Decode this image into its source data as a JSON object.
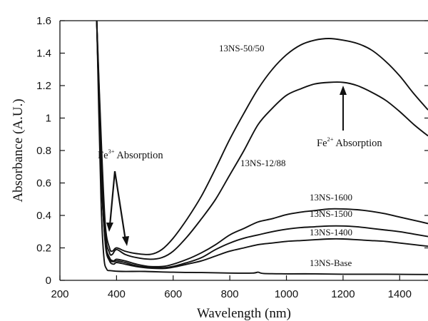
{
  "chart_data": {
    "type": "line",
    "title": "",
    "xlabel": "Wavelength (nm)",
    "ylabel": "Absorbance (A.U.)",
    "xlim": [
      200,
      1500
    ],
    "ylim": [
      0,
      1.6
    ],
    "x_ticks": [
      "200",
      "400",
      "600",
      "800",
      "1000",
      "1200",
      "1400"
    ],
    "y_ticks": [
      "0",
      "0.2",
      "0.4",
      "0.6",
      "0.8",
      "1",
      "1.2",
      "1.4",
      "1.6"
    ],
    "grid": false,
    "series": [
      {
        "name": "13NS-50/50",
        "points": [
          [
            330,
            1.6
          ],
          [
            345,
            0.9
          ],
          [
            360,
            0.35
          ],
          [
            375,
            0.2
          ],
          [
            385,
            0.18
          ],
          [
            400,
            0.2
          ],
          [
            430,
            0.18
          ],
          [
            470,
            0.165
          ],
          [
            520,
            0.16
          ],
          [
            560,
            0.19
          ],
          [
            600,
            0.26
          ],
          [
            650,
            0.38
          ],
          [
            700,
            0.52
          ],
          [
            750,
            0.69
          ],
          [
            800,
            0.87
          ],
          [
            850,
            1.03
          ],
          [
            900,
            1.18
          ],
          [
            950,
            1.3
          ],
          [
            1000,
            1.39
          ],
          [
            1050,
            1.45
          ],
          [
            1100,
            1.48
          ],
          [
            1150,
            1.49
          ],
          [
            1200,
            1.48
          ],
          [
            1250,
            1.46
          ],
          [
            1300,
            1.42
          ],
          [
            1350,
            1.35
          ],
          [
            1400,
            1.26
          ],
          [
            1450,
            1.15
          ],
          [
            1500,
            1.05
          ]
        ]
      },
      {
        "name": "13NS-12/88",
        "points": [
          [
            330,
            1.6
          ],
          [
            345,
            0.85
          ],
          [
            360,
            0.3
          ],
          [
            375,
            0.17
          ],
          [
            385,
            0.16
          ],
          [
            400,
            0.19
          ],
          [
            430,
            0.16
          ],
          [
            470,
            0.14
          ],
          [
            520,
            0.13
          ],
          [
            560,
            0.14
          ],
          [
            600,
            0.18
          ],
          [
            650,
            0.27
          ],
          [
            700,
            0.38
          ],
          [
            750,
            0.5
          ],
          [
            800,
            0.65
          ],
          [
            850,
            0.8
          ],
          [
            900,
            0.96
          ],
          [
            950,
            1.06
          ],
          [
            1000,
            1.14
          ],
          [
            1050,
            1.18
          ],
          [
            1100,
            1.21
          ],
          [
            1150,
            1.22
          ],
          [
            1200,
            1.22
          ],
          [
            1250,
            1.2
          ],
          [
            1300,
            1.16
          ],
          [
            1350,
            1.11
          ],
          [
            1400,
            1.04
          ],
          [
            1450,
            0.96
          ],
          [
            1500,
            0.89
          ]
        ]
      },
      {
        "name": "13NS-1600",
        "points": [
          [
            330,
            1.6
          ],
          [
            345,
            0.7
          ],
          [
            360,
            0.25
          ],
          [
            375,
            0.14
          ],
          [
            390,
            0.12
          ],
          [
            400,
            0.13
          ],
          [
            430,
            0.12
          ],
          [
            470,
            0.1
          ],
          [
            520,
            0.085
          ],
          [
            580,
            0.09
          ],
          [
            650,
            0.13
          ],
          [
            700,
            0.17
          ],
          [
            750,
            0.22
          ],
          [
            800,
            0.28
          ],
          [
            850,
            0.32
          ],
          [
            900,
            0.36
          ],
          [
            950,
            0.38
          ],
          [
            1000,
            0.405
          ],
          [
            1050,
            0.42
          ],
          [
            1100,
            0.43
          ],
          [
            1150,
            0.44
          ],
          [
            1200,
            0.44
          ],
          [
            1250,
            0.435
          ],
          [
            1300,
            0.425
          ],
          [
            1350,
            0.41
          ],
          [
            1400,
            0.39
          ],
          [
            1450,
            0.37
          ],
          [
            1500,
            0.35
          ]
        ]
      },
      {
        "name": "13NS-1500",
        "points": [
          [
            330,
            1.6
          ],
          [
            345,
            0.7
          ],
          [
            360,
            0.24
          ],
          [
            375,
            0.13
          ],
          [
            390,
            0.115
          ],
          [
            400,
            0.12
          ],
          [
            430,
            0.11
          ],
          [
            470,
            0.09
          ],
          [
            520,
            0.08
          ],
          [
            580,
            0.08
          ],
          [
            650,
            0.11
          ],
          [
            700,
            0.14
          ],
          [
            750,
            0.19
          ],
          [
            800,
            0.23
          ],
          [
            850,
            0.26
          ],
          [
            900,
            0.28
          ],
          [
            950,
            0.3
          ],
          [
            1000,
            0.315
          ],
          [
            1050,
            0.325
          ],
          [
            1100,
            0.33
          ],
          [
            1150,
            0.335
          ],
          [
            1200,
            0.335
          ],
          [
            1250,
            0.33
          ],
          [
            1300,
            0.32
          ],
          [
            1350,
            0.31
          ],
          [
            1400,
            0.3
          ],
          [
            1450,
            0.285
          ],
          [
            1500,
            0.27
          ]
        ]
      },
      {
        "name": "13NS-1400",
        "points": [
          [
            330,
            1.6
          ],
          [
            345,
            0.7
          ],
          [
            360,
            0.23
          ],
          [
            375,
            0.12
          ],
          [
            390,
            0.1
          ],
          [
            400,
            0.11
          ],
          [
            430,
            0.1
          ],
          [
            470,
            0.085
          ],
          [
            520,
            0.075
          ],
          [
            580,
            0.075
          ],
          [
            650,
            0.1
          ],
          [
            700,
            0.12
          ],
          [
            750,
            0.15
          ],
          [
            800,
            0.18
          ],
          [
            850,
            0.2
          ],
          [
            900,
            0.22
          ],
          [
            950,
            0.23
          ],
          [
            1000,
            0.24
          ],
          [
            1050,
            0.245
          ],
          [
            1100,
            0.25
          ],
          [
            1150,
            0.255
          ],
          [
            1200,
            0.255
          ],
          [
            1250,
            0.25
          ],
          [
            1300,
            0.245
          ],
          [
            1350,
            0.24
          ],
          [
            1400,
            0.23
          ],
          [
            1450,
            0.22
          ],
          [
            1500,
            0.21
          ]
        ]
      },
      {
        "name": "13NS-Base",
        "points": [
          [
            330,
            1.6
          ],
          [
            345,
            0.5
          ],
          [
            355,
            0.15
          ],
          [
            365,
            0.07
          ],
          [
            380,
            0.06
          ],
          [
            420,
            0.055
          ],
          [
            500,
            0.055
          ],
          [
            600,
            0.05
          ],
          [
            700,
            0.048
          ],
          [
            800,
            0.045
          ],
          [
            880,
            0.045
          ],
          [
            900,
            0.05
          ],
          [
            920,
            0.042
          ],
          [
            1000,
            0.04
          ],
          [
            1100,
            0.04
          ],
          [
            1200,
            0.038
          ],
          [
            1300,
            0.038
          ],
          [
            1400,
            0.037
          ],
          [
            1500,
            0.036
          ]
        ]
      }
    ],
    "series_labels": {
      "s0": "13NS-50/50",
      "s1": "13NS-12/88",
      "s2": "13NS-1600",
      "s3": "13NS-1500",
      "s4": "13NS-1400",
      "s5": "13NS-Base"
    },
    "annotations": {
      "fe3_base": "Fe",
      "fe3_sup": "3+",
      "fe3_rest": " Absorption",
      "fe2_base": "Fe",
      "fe2_sup": "2+",
      "fe2_rest": " Absorption"
    }
  }
}
